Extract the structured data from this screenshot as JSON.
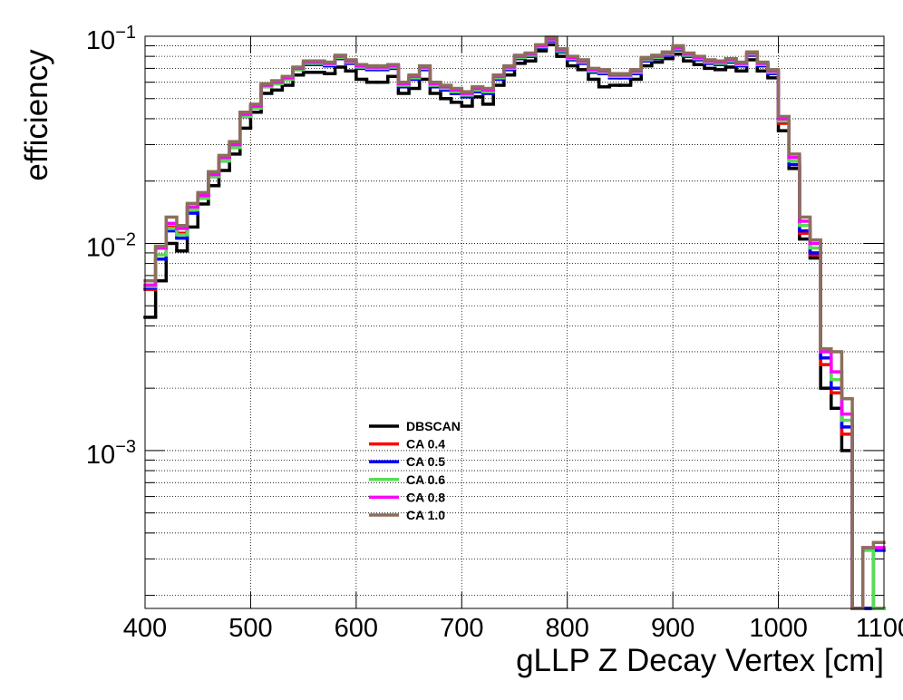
{
  "chart_data": {
    "type": "histogram",
    "xlabel": "gLLP Z Decay Vertex [cm]",
    "ylabel": "efficiency",
    "log_y": true,
    "grid": true,
    "xlim": [
      400,
      1100
    ],
    "ylim": [
      0.000173,
      0.1
    ],
    "xticks": [
      400,
      500,
      600,
      700,
      800,
      900,
      1000,
      1100
    ],
    "yticks": [
      {
        "value": 0.001,
        "label": "10−3"
      },
      {
        "value": 0.01,
        "label": "10−2"
      },
      {
        "value": 0.1,
        "label": "10−1"
      }
    ],
    "yminorticks": [
      0.0002,
      0.0003,
      0.0004,
      0.0005,
      0.0006,
      0.0007,
      0.0008,
      0.0009,
      0.002,
      0.003,
      0.004,
      0.005,
      0.006,
      0.007,
      0.008,
      0.009,
      0.02,
      0.03,
      0.04,
      0.05,
      0.06,
      0.07,
      0.08,
      0.09
    ],
    "bins": [
      400,
      410,
      420,
      430,
      440,
      450,
      460,
      470,
      480,
      490,
      500,
      510,
      520,
      530,
      540,
      550,
      560,
      570,
      580,
      590,
      600,
      610,
      620,
      630,
      640,
      650,
      660,
      670,
      680,
      690,
      700,
      710,
      720,
      730,
      740,
      750,
      760,
      770,
      780,
      790,
      800,
      810,
      820,
      830,
      840,
      850,
      860,
      870,
      880,
      890,
      900,
      910,
      920,
      930,
      940,
      950,
      960,
      970,
      980,
      990,
      1000,
      1010,
      1020,
      1030,
      1040,
      1050,
      1060,
      1070,
      1080,
      1090,
      1100
    ],
    "series": [
      {
        "name": "DBSCAN",
        "color": "#000000",
        "values": [
          0.0044,
          0.0066,
          0.01,
          0.0092,
          0.012,
          0.0155,
          0.019,
          0.0225,
          0.027,
          0.036,
          0.043,
          0.053,
          0.055,
          0.058,
          0.065,
          0.067,
          0.067,
          0.066,
          0.071,
          0.068,
          0.062,
          0.06,
          0.06,
          0.064,
          0.053,
          0.056,
          0.062,
          0.053,
          0.05,
          0.048,
          0.046,
          0.051,
          0.047,
          0.058,
          0.065,
          0.074,
          0.076,
          0.085,
          0.091,
          0.08,
          0.072,
          0.069,
          0.062,
          0.057,
          0.058,
          0.058,
          0.062,
          0.072,
          0.075,
          0.078,
          0.082,
          0.076,
          0.073,
          0.07,
          0.069,
          0.071,
          0.068,
          0.077,
          0.068,
          0.063,
          0.035,
          0.023,
          0.0105,
          0.0085,
          0.002,
          0.0016,
          0.001,
          0,
          0,
          0
        ]
      },
      {
        "name": "CA 0.4",
        "color": "#ff0000",
        "values": [
          0.006,
          0.0095,
          0.012,
          0.0112,
          0.015,
          0.0172,
          0.021,
          0.025,
          0.03,
          0.041,
          0.045,
          0.057,
          0.059,
          0.062,
          0.069,
          0.073,
          0.073,
          0.072,
          0.078,
          0.074,
          0.07,
          0.069,
          0.069,
          0.07,
          0.057,
          0.062,
          0.069,
          0.057,
          0.055,
          0.053,
          0.051,
          0.054,
          0.053,
          0.062,
          0.069,
          0.078,
          0.08,
          0.088,
          0.095,
          0.084,
          0.077,
          0.074,
          0.067,
          0.066,
          0.063,
          0.063,
          0.066,
          0.076,
          0.078,
          0.081,
          0.086,
          0.08,
          0.077,
          0.074,
          0.073,
          0.075,
          0.072,
          0.081,
          0.072,
          0.066,
          0.038,
          0.024,
          0.0112,
          0.0088,
          0.0026,
          0.0019,
          0.0012,
          0,
          0,
          0
        ]
      },
      {
        "name": "CA 0.5",
        "color": "#0000ff",
        "values": [
          0.0061,
          0.0084,
          0.0115,
          0.0106,
          0.014,
          0.0165,
          0.021,
          0.025,
          0.029,
          0.041,
          0.045,
          0.057,
          0.059,
          0.062,
          0.069,
          0.073,
          0.073,
          0.072,
          0.078,
          0.074,
          0.07,
          0.069,
          0.069,
          0.07,
          0.057,
          0.062,
          0.069,
          0.057,
          0.055,
          0.053,
          0.051,
          0.054,
          0.053,
          0.062,
          0.069,
          0.078,
          0.08,
          0.088,
          0.095,
          0.084,
          0.077,
          0.074,
          0.067,
          0.066,
          0.063,
          0.063,
          0.066,
          0.076,
          0.078,
          0.081,
          0.086,
          0.08,
          0.077,
          0.074,
          0.073,
          0.075,
          0.072,
          0.081,
          0.072,
          0.066,
          0.039,
          0.024,
          0.0115,
          0.009,
          0.0028,
          0.002,
          0.0013,
          0,
          0,
          0.00033
        ]
      },
      {
        "name": "CA 0.6",
        "color": "#55dd55",
        "values": [
          0.0062,
          0.0088,
          0.0118,
          0.011,
          0.0145,
          0.0165,
          0.021,
          0.025,
          0.029,
          0.041,
          0.045,
          0.057,
          0.059,
          0.062,
          0.069,
          0.074,
          0.074,
          0.073,
          0.079,
          0.075,
          0.071,
          0.07,
          0.07,
          0.071,
          0.058,
          0.063,
          0.07,
          0.058,
          0.056,
          0.054,
          0.052,
          0.055,
          0.054,
          0.063,
          0.07,
          0.079,
          0.081,
          0.089,
          0.096,
          0.085,
          0.078,
          0.075,
          0.068,
          0.067,
          0.064,
          0.064,
          0.067,
          0.077,
          0.079,
          0.082,
          0.087,
          0.081,
          0.078,
          0.075,
          0.074,
          0.076,
          0.073,
          0.082,
          0.073,
          0.067,
          0.039,
          0.025,
          0.0122,
          0.0095,
          0.003,
          0.0022,
          0.0014,
          0,
          0.00033,
          0
        ]
      },
      {
        "name": "CA 0.8",
        "color": "#ff00ff",
        "values": [
          0.0063,
          0.0095,
          0.0125,
          0.0118,
          0.015,
          0.017,
          0.0215,
          0.026,
          0.03,
          0.042,
          0.046,
          0.058,
          0.06,
          0.063,
          0.07,
          0.075,
          0.075,
          0.074,
          0.08,
          0.076,
          0.072,
          0.071,
          0.071,
          0.072,
          0.059,
          0.064,
          0.071,
          0.059,
          0.057,
          0.055,
          0.053,
          0.056,
          0.055,
          0.064,
          0.071,
          0.08,
          0.082,
          0.09,
          0.097,
          0.086,
          0.079,
          0.076,
          0.069,
          0.068,
          0.065,
          0.065,
          0.068,
          0.078,
          0.08,
          0.083,
          0.088,
          0.082,
          0.079,
          0.076,
          0.075,
          0.077,
          0.074,
          0.083,
          0.074,
          0.068,
          0.04,
          0.026,
          0.0128,
          0.01,
          0.003,
          0.0024,
          0.0015,
          0,
          0.00034,
          0.00034
        ]
      },
      {
        "name": "CA 1.0",
        "color": "#8b6f5c",
        "values": [
          0.0066,
          0.0097,
          0.0134,
          0.0122,
          0.0156,
          0.0176,
          0.0222,
          0.0266,
          0.031,
          0.043,
          0.047,
          0.059,
          0.061,
          0.064,
          0.071,
          0.076,
          0.076,
          0.075,
          0.081,
          0.077,
          0.073,
          0.072,
          0.072,
          0.073,
          0.06,
          0.065,
          0.072,
          0.06,
          0.058,
          0.056,
          0.054,
          0.057,
          0.056,
          0.065,
          0.072,
          0.081,
          0.083,
          0.091,
          0.099,
          0.087,
          0.08,
          0.077,
          0.07,
          0.069,
          0.066,
          0.066,
          0.069,
          0.079,
          0.081,
          0.084,
          0.09,
          0.083,
          0.08,
          0.077,
          0.076,
          0.078,
          0.075,
          0.084,
          0.075,
          0.069,
          0.041,
          0.027,
          0.0134,
          0.0104,
          0.0031,
          0.003,
          0.00178,
          0,
          0.00034,
          0.00036
        ]
      }
    ]
  }
}
